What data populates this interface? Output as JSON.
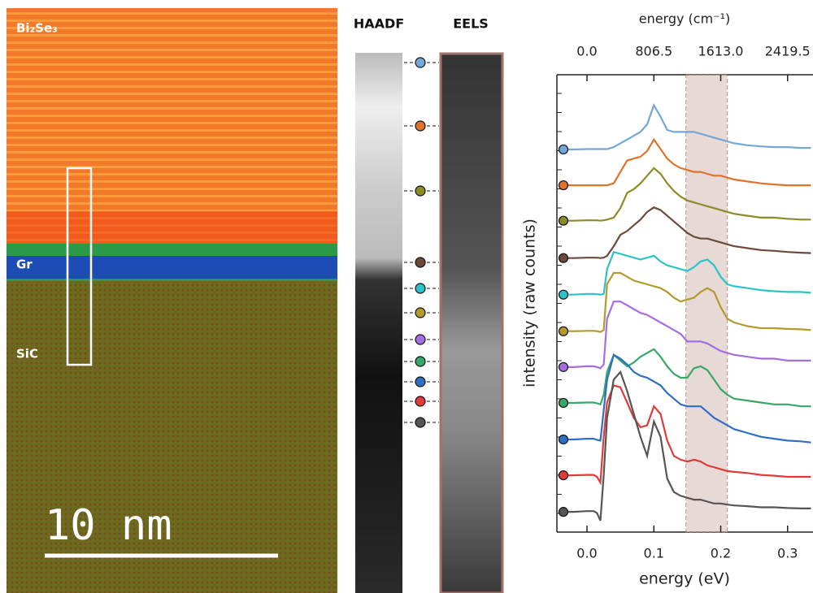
{
  "image": {
    "labels": [
      "Bi₂Se₃",
      "Gr",
      "SiC"
    ],
    "scale_bar": "10 nm"
  },
  "strips": {
    "haadf": "HAADF",
    "eels": "EELS"
  },
  "chart_data": {
    "type": "line",
    "xlabel": "energy (eV)",
    "x2label": "energy (cm⁻¹)",
    "ylabel": "intensity (raw counts)",
    "xlim": [
      -0.045,
      0.338
    ],
    "xticks": [
      {
        "value": 0,
        "label": "0.0"
      },
      0.1,
      0.2,
      0.3
    ],
    "x2lim": [
      -362.925,
      2725.97
    ],
    "x2ticks": [
      {
        "value": 0,
        "label": "0.0"
      },
      806.5,
      {
        "value": 1613,
        "label": "1613.0"
      },
      2419.5
    ],
    "ylim": [
      0,
      12
    ],
    "band": [
      0.148,
      0.21
    ],
    "x": [
      -0.035,
      -0.02,
      0,
      0.01,
      0.015,
      0.02,
      0.025,
      0.03,
      0.04,
      0.05,
      0.06,
      0.07,
      0.08,
      0.09,
      0.1,
      0.11,
      0.12,
      0.13,
      0.14,
      0.15,
      0.16,
      0.17,
      0.18,
      0.19,
      0.2,
      0.21,
      0.22,
      0.24,
      0.26,
      0.28,
      0.3,
      0.32,
      0.335
    ],
    "series": [
      {
        "color": "#74a7d6",
        "values": [
          10.04,
          10.04,
          10.05,
          10.05,
          10.05,
          10.05,
          10.05,
          10.05,
          10.1,
          10.2,
          10.3,
          10.4,
          10.5,
          10.7,
          11.2,
          10.9,
          10.55,
          10.5,
          10.5,
          10.5,
          10.5,
          10.45,
          10.4,
          10.35,
          10.3,
          10.25,
          10.2,
          10.15,
          10.12,
          10.1,
          10.1,
          10.08,
          10.08
        ]
      },
      {
        "color": "#e0732a",
        "values": [
          9.1,
          9.1,
          9.1,
          9.1,
          9.1,
          9.1,
          9.1,
          9.1,
          9.15,
          9.45,
          9.75,
          9.8,
          9.85,
          10.0,
          10.3,
          10.05,
          9.8,
          9.65,
          9.55,
          9.5,
          9.45,
          9.45,
          9.4,
          9.35,
          9.35,
          9.3,
          9.25,
          9.2,
          9.15,
          9.12,
          9.1,
          9.1,
          9.1
        ]
      },
      {
        "color": "#8c8c26",
        "values": [
          8.17,
          8.17,
          8.18,
          8.18,
          8.18,
          8.17,
          8.18,
          8.2,
          8.25,
          8.5,
          8.9,
          9.0,
          9.15,
          9.35,
          9.55,
          9.4,
          9.15,
          8.95,
          8.8,
          8.7,
          8.65,
          8.6,
          8.55,
          8.5,
          8.45,
          8.4,
          8.35,
          8.3,
          8.25,
          8.25,
          8.22,
          8.2,
          8.2
        ]
      },
      {
        "color": "#6b4a3c",
        "values": [
          7.19,
          7.19,
          7.2,
          7.2,
          7.2,
          7.19,
          7.2,
          7.25,
          7.5,
          7.8,
          7.9,
          8.05,
          8.2,
          8.4,
          8.52,
          8.45,
          8.3,
          8.15,
          8.0,
          7.85,
          7.75,
          7.7,
          7.7,
          7.65,
          7.6,
          7.55,
          7.5,
          7.45,
          7.4,
          7.38,
          7.35,
          7.33,
          7.32
        ]
      },
      {
        "color": "#2cc3c8",
        "values": [
          6.23,
          6.23,
          6.25,
          6.25,
          6.24,
          6.23,
          6.25,
          6.9,
          7.35,
          7.3,
          7.25,
          7.2,
          7.15,
          7.2,
          7.25,
          7.1,
          7.0,
          6.95,
          6.9,
          6.85,
          6.95,
          7.1,
          7.15,
          7.0,
          6.7,
          6.5,
          6.45,
          6.4,
          6.35,
          6.32,
          6.3,
          6.3,
          6.28
        ]
      },
      {
        "color": "#b39a2c",
        "values": [
          5.27,
          5.27,
          5.28,
          5.28,
          5.27,
          5.25,
          5.3,
          6.5,
          6.8,
          6.8,
          6.7,
          6.6,
          6.55,
          6.5,
          6.45,
          6.4,
          6.3,
          6.15,
          6.05,
          6.1,
          6.15,
          6.3,
          6.4,
          6.3,
          5.9,
          5.6,
          5.5,
          5.4,
          5.35,
          5.35,
          5.33,
          5.32,
          5.3
        ]
      },
      {
        "color": "#a56ee0",
        "values": [
          4.33,
          4.33,
          4.35,
          4.35,
          4.33,
          4.3,
          4.4,
          5.6,
          6.05,
          6.05,
          5.95,
          5.85,
          5.75,
          5.7,
          5.6,
          5.5,
          5.4,
          5.3,
          5.2,
          5.0,
          5.0,
          5.0,
          4.95,
          4.85,
          4.75,
          4.7,
          4.65,
          4.6,
          4.55,
          4.55,
          4.5,
          4.5,
          4.5
        ]
      },
      {
        "color": "#38a86a",
        "values": [
          3.39,
          3.39,
          3.4,
          3.4,
          3.38,
          3.35,
          3.6,
          4.2,
          4.65,
          4.5,
          4.35,
          4.45,
          4.6,
          4.7,
          4.8,
          4.6,
          4.35,
          4.15,
          4.05,
          4.05,
          4.3,
          4.35,
          4.25,
          4.0,
          3.75,
          3.6,
          3.5,
          3.45,
          3.4,
          3.35,
          3.35,
          3.3,
          3.3
        ]
      },
      {
        "color": "#2e6fc4",
        "values": [
          2.43,
          2.43,
          2.45,
          2.45,
          2.42,
          2.4,
          3.2,
          4.0,
          4.65,
          4.55,
          4.4,
          4.2,
          4.1,
          4.05,
          3.95,
          3.85,
          3.65,
          3.5,
          3.35,
          3.3,
          3.3,
          3.3,
          3.15,
          3.0,
          2.9,
          2.8,
          2.7,
          2.6,
          2.5,
          2.45,
          2.4,
          2.38,
          2.35
        ]
      },
      {
        "color": "#e03a3a",
        "values": [
          1.49,
          1.49,
          1.5,
          1.5,
          1.45,
          1.3,
          2.5,
          3.4,
          3.85,
          3.8,
          3.4,
          3.0,
          2.75,
          2.8,
          3.3,
          3.1,
          2.4,
          2.0,
          1.9,
          1.85,
          1.9,
          1.85,
          1.75,
          1.7,
          1.65,
          1.6,
          1.58,
          1.55,
          1.5,
          1.48,
          1.45,
          1.45,
          1.45
        ]
      },
      {
        "color": "#555555",
        "values": [
          0.53,
          0.53,
          0.55,
          0.55,
          0.5,
          0.3,
          1.5,
          3.0,
          4.0,
          4.2,
          3.7,
          3.1,
          2.5,
          2.0,
          2.9,
          2.5,
          1.4,
          1.05,
          0.95,
          0.9,
          0.85,
          0.85,
          0.8,
          0.75,
          0.75,
          0.72,
          0.7,
          0.68,
          0.65,
          0.65,
          0.63,
          0.62,
          0.62
        ]
      }
    ]
  }
}
